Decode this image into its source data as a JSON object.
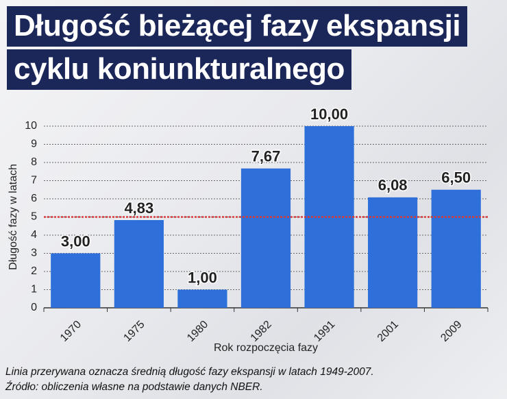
{
  "chart_data": {
    "type": "bar",
    "title": "Długość bieżącej fazy ekspansji cyklu koniunkturalnego",
    "categories": [
      "1970",
      "1975",
      "1980",
      "1982",
      "1991",
      "2001",
      "2009"
    ],
    "values": [
      3,
      4.83,
      1,
      7.67,
      10,
      6.08,
      6.5
    ],
    "value_labels": [
      "3,00",
      "4,83",
      "1,00",
      "7,67",
      "10,00",
      "6,08",
      "6,50"
    ],
    "color": "#2f6fd9",
    "average": 5,
    "average_color": "#d63a3a",
    "ylim": [
      0,
      10
    ],
    "yticks": [
      0,
      1,
      2,
      3,
      4,
      5,
      6,
      7,
      8,
      9,
      10
    ],
    "grid": true,
    "ylabel": "Długość fazy w latach",
    "xlabel": "Rok rozpoczęcia fazy",
    "notes": [
      "Linia przerywana oznacza średnią długość fazy ekspansji w latach 1949-2007.",
      "Źródło: obliczenia własne na podstawie danych NBER."
    ]
  }
}
